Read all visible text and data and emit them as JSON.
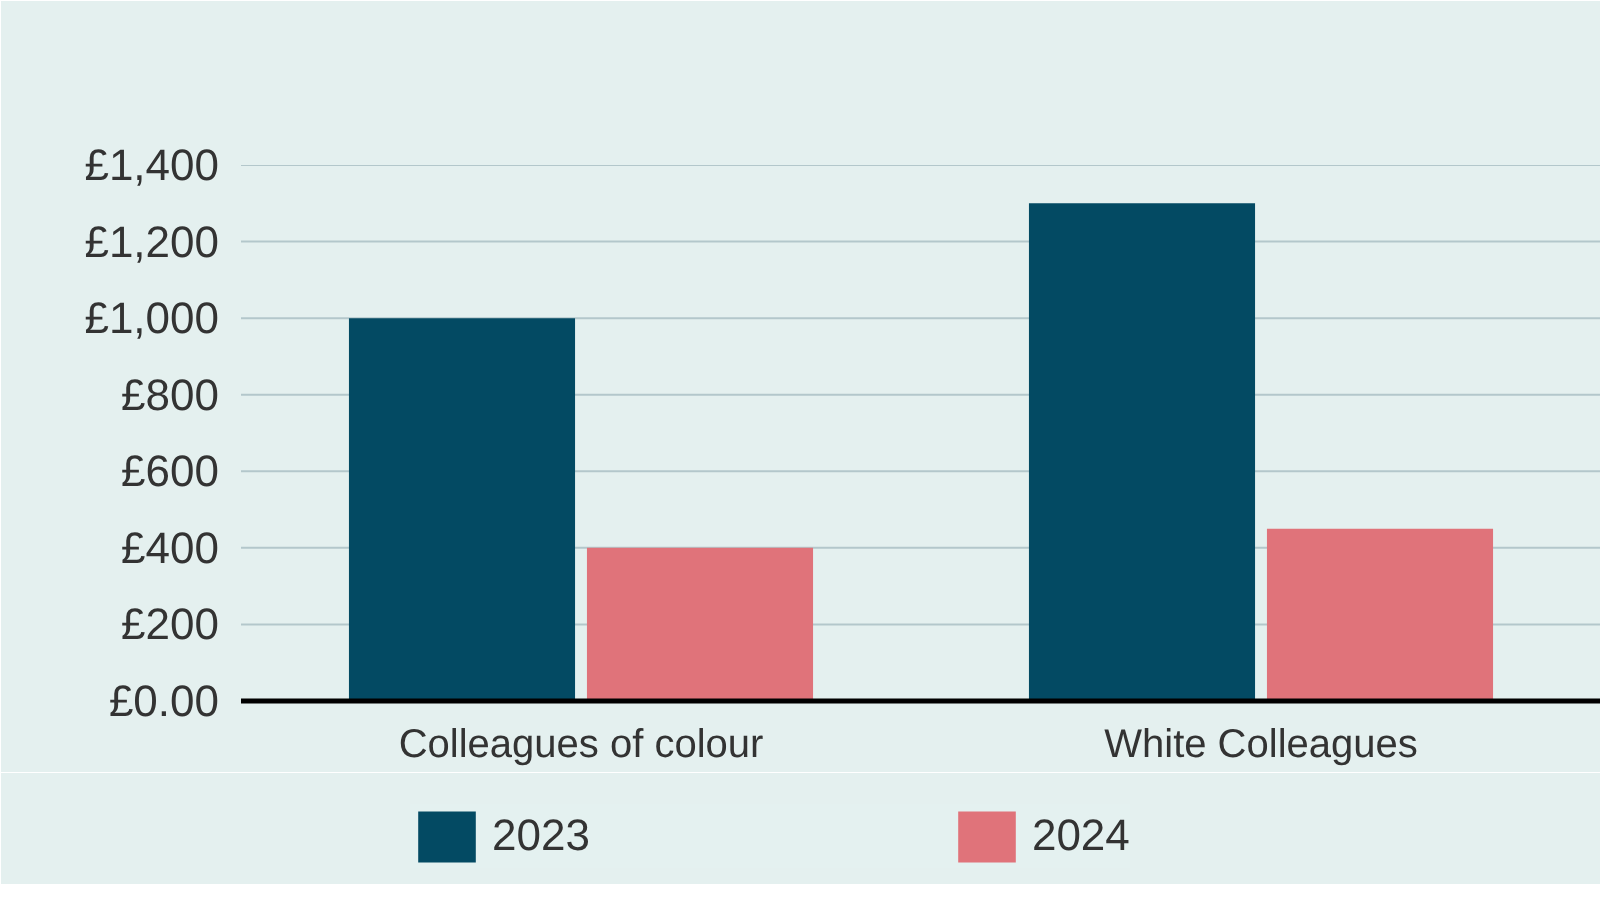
{
  "chart_data": {
    "type": "bar",
    "categories": [
      "Colleagues of colour",
      "White Colleagues"
    ],
    "series": [
      {
        "name": "2023",
        "color": "#034a63",
        "values": [
          1000,
          1300
        ]
      },
      {
        "name": "2024",
        "color": "#e0737a",
        "values": [
          400,
          450
        ]
      }
    ],
    "ylim": [
      0,
      1400
    ],
    "yticks": [
      {
        "value": 0,
        "label": "£0.00"
      },
      {
        "value": 200,
        "label": "£200"
      },
      {
        "value": 400,
        "label": "£400"
      },
      {
        "value": 600,
        "label": "£600"
      },
      {
        "value": 800,
        "label": "£800"
      },
      {
        "value": 1000,
        "label": "£1,000"
      },
      {
        "value": 1200,
        "label": "£1,200"
      },
      {
        "value": 1400,
        "label": "£1,400"
      }
    ],
    "grid": "y",
    "legend": "bottom"
  }
}
